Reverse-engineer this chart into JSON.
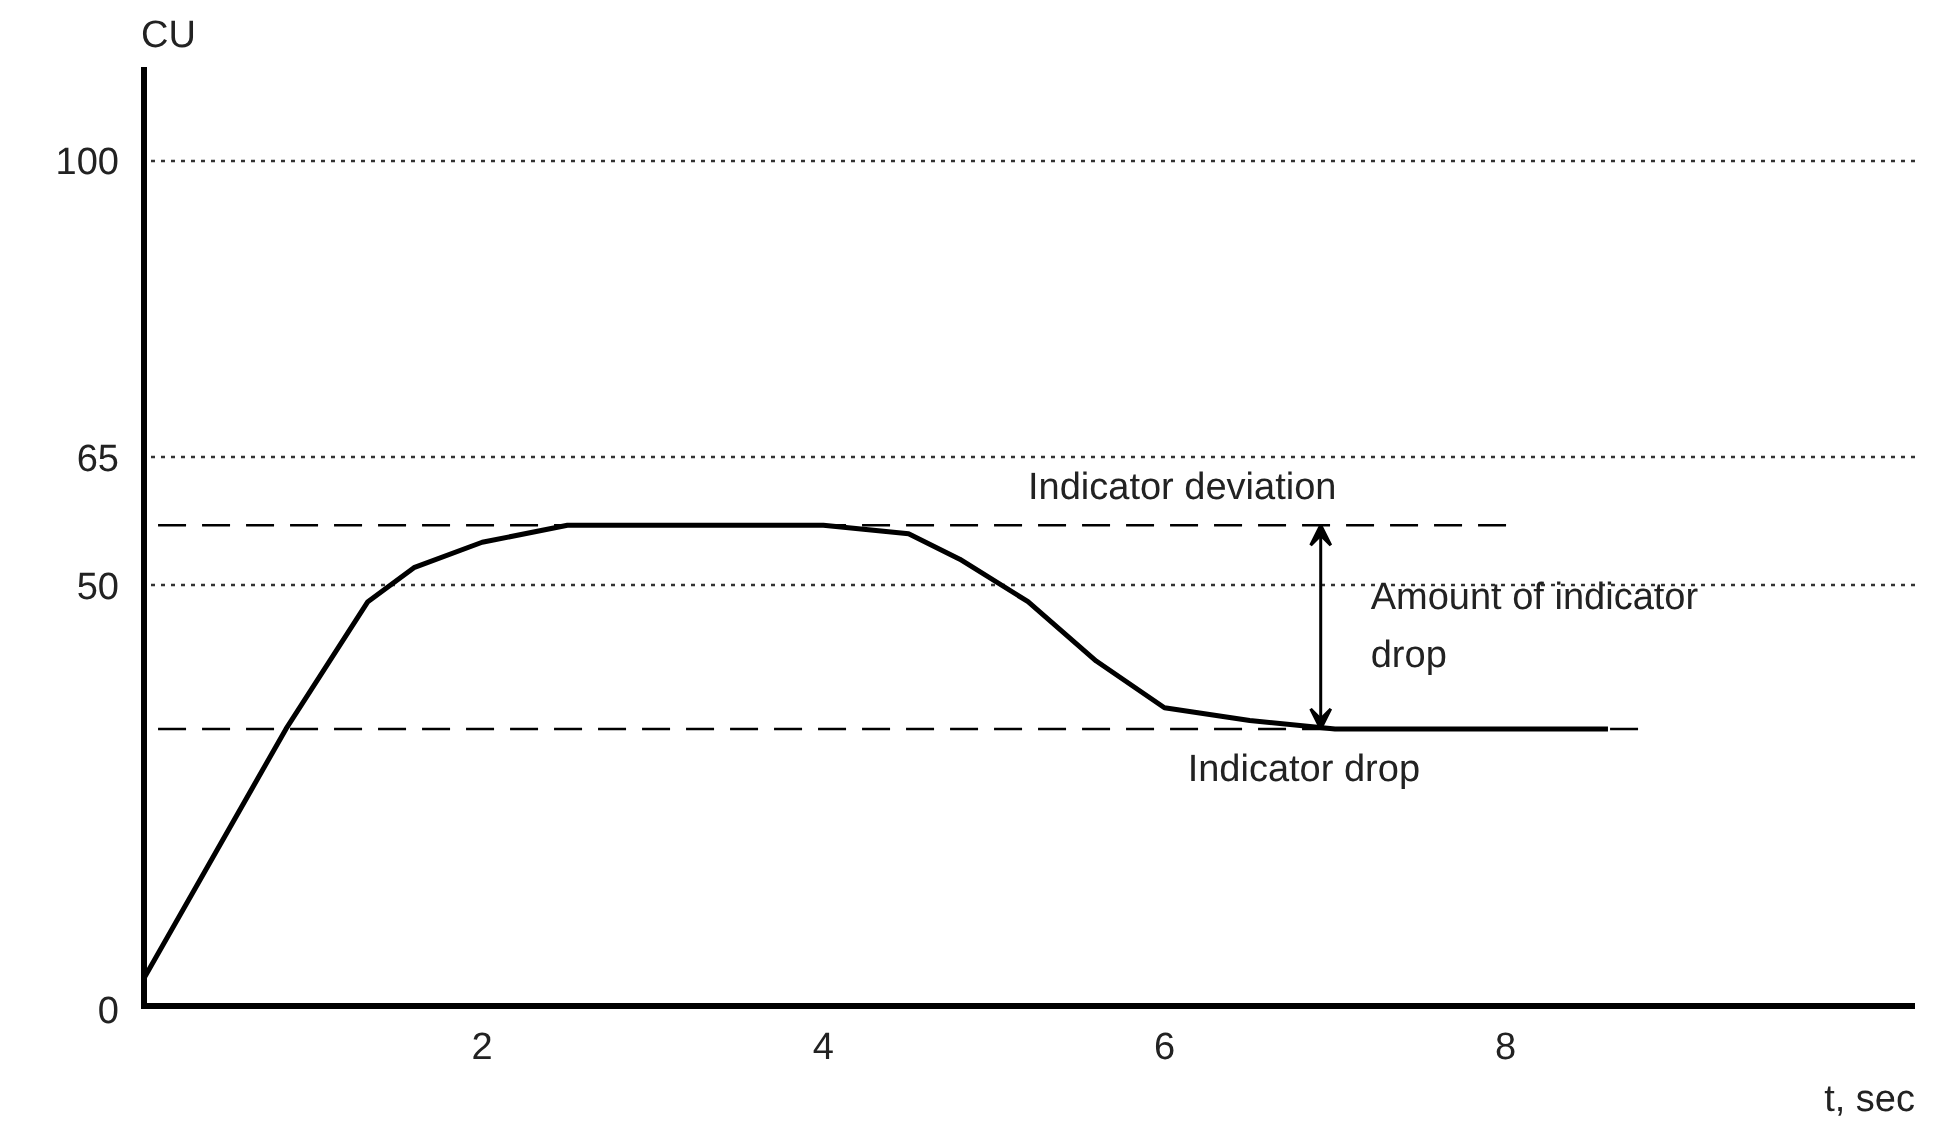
{
  "chart_data": {
    "type": "line",
    "xlabel": "t, sec",
    "ylabel": "CU",
    "x": [
      0,
      0.85,
      1.33,
      1.6,
      2,
      2.5,
      3,
      4,
      4.5,
      4.8,
      5.2,
      5.6,
      6,
      6.5,
      7,
      8,
      8.6
    ],
    "series": [
      {
        "color": "#000000",
        "values": [
          3,
          33,
          48,
          52,
          55,
          57,
          57,
          57,
          56,
          53,
          48,
          41,
          35.5,
          34,
          33,
          33,
          33
        ]
      }
    ],
    "xlim": [
      0,
      10.4
    ],
    "ylim": [
      0,
      111
    ],
    "xticks": [
      2,
      4,
      6,
      8
    ],
    "yticks": [
      0,
      50,
      65,
      100
    ],
    "grid": "y",
    "marker": "none",
    "line_style": "solid",
    "ref_lines": [
      {
        "axis": "y",
        "value": 57,
        "label": "Indicator deviation",
        "line_style": "dashed",
        "color": "#000000"
      },
      {
        "axis": "y",
        "value": 33,
        "label": "Indicator drop",
        "line_style": "dashed",
        "color": "#000000"
      }
    ],
    "annotations": [
      "Amount of indicator drop"
    ]
  }
}
